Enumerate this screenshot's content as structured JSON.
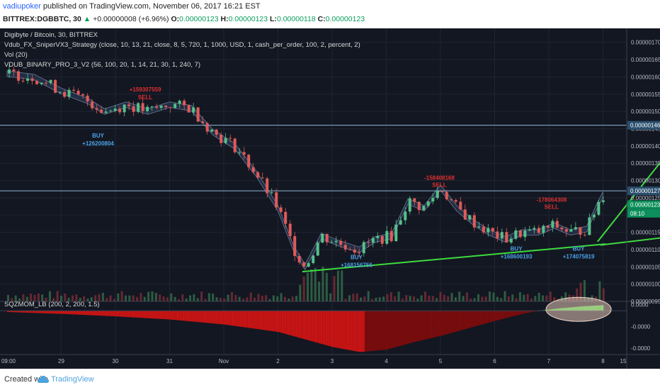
{
  "header": {
    "author": "vadiupoker",
    "published_text": "published on TradingView.com, November 06, 2017 16:21 EST",
    "symbol": "BITTREX:DGBBTC, 30",
    "change_arrow": "▲",
    "change": "+0.00000008 (+6.96%)",
    "open_label": "O:",
    "open": "0.00000123",
    "high_label": "H:",
    "high": "0.00000123",
    "low_label": "L:",
    "low": "0.00000118",
    "close_label": "C:",
    "close": "0.00000123"
  },
  "chart_data": {
    "type": "candlestick",
    "title": "Digibyte / Bitcoin, 30, BITTREX",
    "indicators": [
      "Vdub_FX_SniperVX3_Strategy (close, 10, 13, 21, close, 8, 5, 720, 1, 1000, USD, 1, cash_per_order, 100, 2, percent, 2)",
      "Vol (20)",
      "VDUB_BINARY_PRO_3_V2 (56, 100, 20, 1, 14, 21, 30, 1, 240, 7)"
    ],
    "x_ticks": [
      "09:00",
      "29",
      "30",
      "31",
      "Nov",
      "2",
      "3",
      "4",
      "5",
      "6",
      "7",
      "8",
      "15"
    ],
    "y_ticks": [
      "0.00000170",
      "0.00000165",
      "0.00000160",
      "0.00000155",
      "0.00000150",
      "0.00000145",
      "0.00000140",
      "0.00000135",
      "0.00000130",
      "0.00000125",
      "0.00000120",
      "0.00000115",
      "0.00000110",
      "0.00000105",
      "0.00000100",
      "0.00000095"
    ],
    "ylim": [
      9.5e-07,
      1.72e-06
    ],
    "price_tags": [
      {
        "label": "0.00000146",
        "value": 1.46e-06,
        "color": "#2a4f6e"
      },
      {
        "label": "0.00000127",
        "value": 1.27e-06,
        "color": "#2a4f6e"
      },
      {
        "label": "0.00000123",
        "value": 1.23e-06,
        "color": "#0c8f5a"
      },
      {
        "label": "08:10",
        "value": 1.205e-06,
        "color": "#0c8f5a"
      }
    ],
    "horizontal_lines": [
      1.46e-06,
      1.27e-06
    ],
    "price_path": [
      [
        0,
        1.61e-06
      ],
      [
        0.5,
        1.6e-06
      ],
      [
        1,
        1.56e-06
      ],
      [
        1.5,
        1.53e-06
      ],
      [
        1.8,
        1.5e-06
      ],
      [
        2.2,
        1.52e-06
      ],
      [
        2.6,
        1.5e-06
      ],
      [
        3.0,
        1.52e-06
      ],
      [
        3.4,
        1.51e-06
      ],
      [
        3.8,
        1.44e-06
      ],
      [
        4.2,
        1.4e-06
      ],
      [
        4.6,
        1.32e-06
      ],
      [
        5.0,
        1.22e-06
      ],
      [
        5.3,
        1.1e-06
      ],
      [
        5.5,
        1.05e-06
      ],
      [
        5.8,
        1.14e-06
      ],
      [
        6.1,
        1.12e-06
      ],
      [
        6.5,
        1.1e-06
      ],
      [
        6.8,
        1.13e-06
      ],
      [
        7.1,
        1.14e-06
      ],
      [
        7.4,
        1.24e-06
      ],
      [
        7.7,
        1.22e-06
      ],
      [
        8.0,
        1.28e-06
      ],
      [
        8.3,
        1.22e-06
      ],
      [
        8.6,
        1.18e-06
      ],
      [
        8.9,
        1.15e-06
      ],
      [
        9.2,
        1.13e-06
      ],
      [
        9.5,
        1.15e-06
      ],
      [
        9.8,
        1.15e-06
      ],
      [
        10.1,
        1.17e-06
      ],
      [
        10.4,
        1.15e-06
      ],
      [
        10.7,
        1.16e-06
      ],
      [
        10.9,
        1.23e-06
      ],
      [
        11.0,
        1.26e-06
      ],
      [
        11.1,
        1.23e-06
      ]
    ],
    "trade_labels": [
      {
        "text": "+159307559",
        "x": 2.55,
        "y": 1.558e-06,
        "color": "#e03030"
      },
      {
        "text": "SELL",
        "x": 2.55,
        "y": 1.535e-06,
        "color": "#e03030"
      },
      {
        "text": "BUY",
        "x": 1.68,
        "y": 1.424e-06,
        "color": "#4aa3e8"
      },
      {
        "text": "+126200804",
        "x": 1.68,
        "y": 1.402e-06,
        "color": "#4aa3e8"
      },
      {
        "text": "-158408168",
        "x": 7.98,
        "y": 1.302e-06,
        "color": "#e03030"
      },
      {
        "text": "SELL",
        "x": 7.98,
        "y": 1.282e-06,
        "color": "#e03030"
      },
      {
        "text": "BUY",
        "x": 6.45,
        "y": 1.072e-06,
        "color": "#4aa3e8"
      },
      {
        "text": "+168156756",
        "x": 6.45,
        "y": 1.05e-06,
        "color": "#4aa3e8"
      },
      {
        "text": "-178064308",
        "x": 10.05,
        "y": 1.238e-06,
        "color": "#e03030"
      },
      {
        "text": "SELL",
        "x": 10.05,
        "y": 1.218e-06,
        "color": "#e03030"
      },
      {
        "text": "BUY",
        "x": 9.4,
        "y": 1.097e-06,
        "color": "#4aa3e8"
      },
      {
        "text": "+168600193",
        "x": 9.4,
        "y": 1.074e-06,
        "color": "#4aa3e8"
      },
      {
        "text": "BUY",
        "x": 10.55,
        "y": 1.097e-06,
        "color": "#4aa3e8"
      },
      {
        "text": "+174075819",
        "x": 10.55,
        "y": 1.074e-06,
        "color": "#4aa3e8"
      }
    ],
    "trendlines": [
      {
        "x1": 5.45,
        "y1": 1.036e-06,
        "x2": 11.05,
        "y2": 1.116e-06,
        "color": "#3ddc3d"
      },
      {
        "x1": 10.95,
        "y1": 1.113e-06,
        "x2": 13.0,
        "y2": 1.151e-06,
        "color": "#3ddc3d",
        "arrow": true
      },
      {
        "x1": 10.9,
        "y1": 1.123e-06,
        "x2": 12.35,
        "y2": 1.41e-06,
        "color": "#3ddc3d",
        "arrow": true
      }
    ],
    "momentum": {
      "label": "SQZMOM_LB (200, 2, 200, 1.5)",
      "y_ticks": [
        "0.0000",
        "-0.0000",
        "-0.0000"
      ],
      "series": [
        [
          0,
          -0.2
        ],
        [
          1,
          -0.5
        ],
        [
          2,
          -0.9
        ],
        [
          3,
          -1.4
        ],
        [
          4,
          -2.2
        ],
        [
          5,
          -3.4
        ],
        [
          5.5,
          -4.6
        ],
        [
          6,
          -5.8
        ],
        [
          6.5,
          -6.6
        ],
        [
          7,
          -6.2
        ],
        [
          7.5,
          -5.0
        ],
        [
          8,
          -4.0
        ],
        [
          8.5,
          -2.8
        ],
        [
          9,
          -1.6
        ],
        [
          9.5,
          -0.5
        ],
        [
          9.8,
          0.0
        ],
        [
          10.2,
          0.4
        ],
        [
          10.6,
          0.7
        ],
        [
          11.0,
          0.9
        ]
      ],
      "ylim": [
        -7,
        1.5
      ]
    },
    "footer": {
      "created_with": "Created with",
      "brand": "TradingView"
    }
  }
}
